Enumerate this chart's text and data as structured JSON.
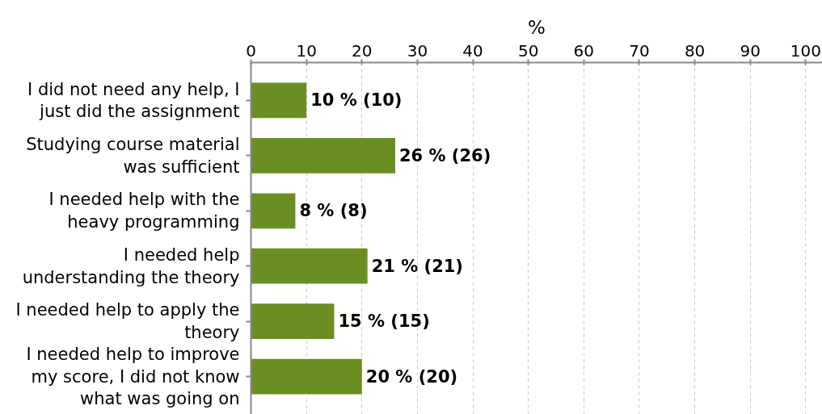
{
  "chart_data": {
    "type": "bar",
    "orientation": "horizontal",
    "xlabel": "%",
    "categories": [
      "I did not need any help, I just did the assignment",
      "Studying course material was sufficient",
      "I needed help with the heavy programming",
      "I needed help understanding the theory",
      "I needed help to apply the theory",
      "I needed help to improve my score, I did not know what was going on"
    ],
    "values": [
      10,
      26,
      8,
      21,
      15,
      20
    ],
    "color": "#6b8e23",
    "value_labels": [
      "10 % (10)",
      "26 % (26)",
      "8 % (8)",
      "21 % (21)",
      "15 % (15)",
      "20 % (20)"
    ],
    "xlim": [
      0,
      103
    ],
    "xticks": [
      0,
      10,
      20,
      30,
      40,
      50,
      60,
      70,
      80,
      90,
      100
    ],
    "grid": "x"
  }
}
